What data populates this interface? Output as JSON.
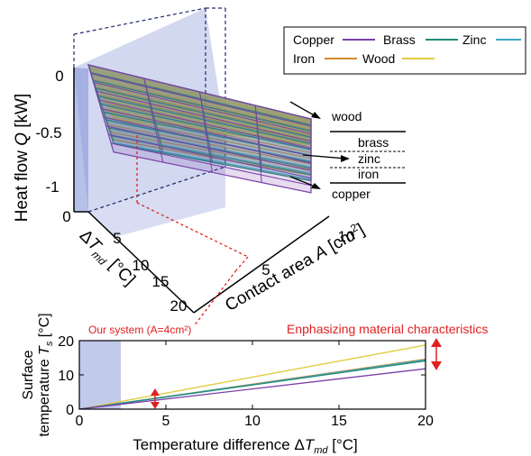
{
  "chart_data": [
    {
      "type": "surface3d",
      "zlabel_parts": [
        "Heat flow ",
        "Q",
        " [kW]"
      ],
      "xlabel_parts": [
        "Contact area ",
        "A",
        " [cm",
        "2",
        "]"
      ],
      "ylabel_parts": [
        "Δ",
        "T",
        "md",
        " [°C]"
      ],
      "z_ticks": [
        "0",
        "-0.5",
        "-1"
      ],
      "x_ticks": [
        "5",
        "10"
      ],
      "y_ticks": [
        "0",
        "5",
        "10",
        "15",
        "20"
      ],
      "legend": [
        {
          "name": "Copper",
          "color": "#7a3fa8"
        },
        {
          "name": "Brass",
          "color": "#238a7a"
        },
        {
          "name": "Zinc",
          "color": "#3aa8c0"
        },
        {
          "name": "Iron",
          "color": "#d4892a"
        },
        {
          "name": "Wood",
          "color": "#e0cc3c"
        }
      ],
      "surfaces": [
        {
          "material": "wood",
          "heat_flow_at_max": -0.37
        },
        {
          "material": "iron",
          "heat_flow_at_max": -0.8
        },
        {
          "material": "zinc",
          "heat_flow_at_max": -0.86
        },
        {
          "material": "brass",
          "heat_flow_at_max": -0.88
        },
        {
          "material": "copper",
          "heat_flow_at_max": -1.05
        }
      ],
      "annotations": {
        "wood": "wood",
        "brass": "brass",
        "zinc": "zinc",
        "iron": "iron",
        "copper": "copper"
      }
    },
    {
      "type": "line",
      "ylabel_line1": "Surface",
      "ylabel_line2_parts": [
        "temperature ",
        "T",
        "s",
        " [°C]"
      ],
      "xlabel_parts": [
        "Temperature difference ",
        "Δ",
        "T",
        "md",
        " [°C]"
      ],
      "xlim": [
        0,
        20
      ],
      "ylim": [
        0,
        20
      ],
      "x_ticks": [
        0,
        5,
        10,
        15,
        20
      ],
      "y_ticks": [
        0,
        10,
        20
      ],
      "highlight_range": [
        0,
        2.4
      ],
      "series": [
        {
          "name": "Wood",
          "color": "#e0cc3c",
          "x": [
            0,
            20
          ],
          "y": [
            0,
            18.7
          ]
        },
        {
          "name": "Iron",
          "color": "#d4892a",
          "x": [
            0,
            20
          ],
          "y": [
            0,
            14.6
          ]
        },
        {
          "name": "Zinc",
          "color": "#3aa8c0",
          "x": [
            0,
            20
          ],
          "y": [
            0,
            14.4
          ]
        },
        {
          "name": "Brass",
          "color": "#238a7a",
          "x": [
            0,
            20
          ],
          "y": [
            0,
            14.1
          ]
        },
        {
          "name": "Copper",
          "color": "#7a3fa8",
          "x": [
            0,
            20
          ],
          "y": [
            0,
            11.8
          ]
        }
      ],
      "annotations": {
        "system_note": "Our system (A=4cm²)",
        "emphasis_note": "Enphasizing material characteristics",
        "accent_color": "#e02020"
      }
    }
  ]
}
